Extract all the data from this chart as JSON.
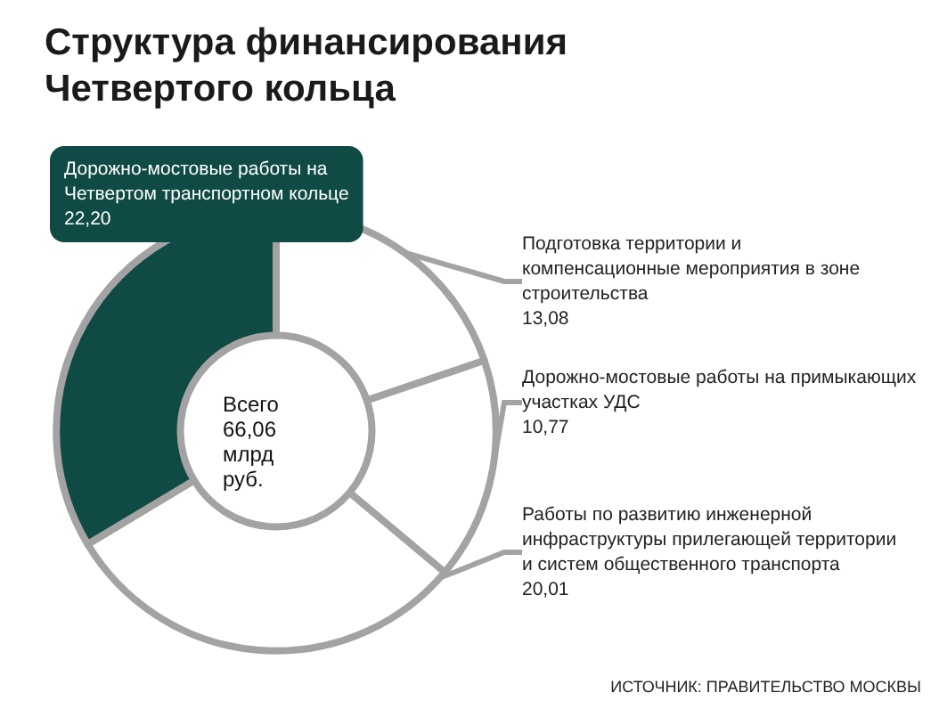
{
  "chart_data": {
    "type": "donut",
    "title": "Структура финансирования Четвертого кольца",
    "categories": [
      "Подготовка территории и компенсационные мероприятия в зоне строительства",
      "Дорожно-мостовые работы на примыкающих участках УДС",
      "Работы по развитию инженерной инфраструктуры прилегающей территории и систем общественного транспорта",
      "Дорожно-мостовые работы на Четвертом транспортном кольце"
    ],
    "values": [
      13.08,
      10.77,
      20.01,
      22.2
    ],
    "value_labels": [
      "13,08",
      "10,77",
      "20,01",
      "22,20"
    ],
    "colors": [
      "#ffffff",
      "#ffffff",
      "#ffffff",
      "#0f4a44"
    ],
    "annotations": [
      "Всего 66,06 млрд руб.",
      "ИСТОЧНИК: ПРАВИТЕЛЬСТВО МОСКВЫ"
    ],
    "legend": false
  }
}
